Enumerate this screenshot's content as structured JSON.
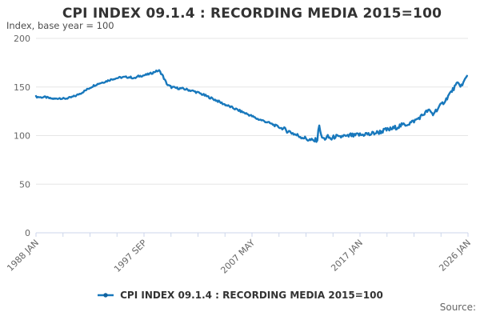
{
  "page": {
    "source_label": "Source:"
  },
  "chart_data": {
    "type": "line",
    "title": "CPI INDEX 09.1.4 : RECORDING MEDIA 2015=100",
    "subtitle": "Index, base year = 100",
    "xlabel": "",
    "ylabel": "Index, base year = 100",
    "x_axis": {
      "start_label": "1988 JAN",
      "end_label": "2026 JAN",
      "months_total": 456,
      "tick_interval_count": 16,
      "tick_labels": [
        {
          "tick_index": 0,
          "text": "1988 JAN"
        },
        {
          "tick_index": 4,
          "text": "1997 SEP"
        },
        {
          "tick_index": 8,
          "text": "2007 MAY"
        },
        {
          "tick_index": 12,
          "text": "2017 JAN"
        },
        {
          "tick_index": 16,
          "text": "2026 JAN"
        }
      ]
    },
    "y_axis": {
      "min": 0,
      "max": 200,
      "ticks": [
        0,
        50,
        100,
        150,
        200
      ]
    },
    "grid": "horizontal-only",
    "legend_position": "bottom-center",
    "series": [
      {
        "name": "CPI INDEX 09.1.4 : RECORDING MEDIA 2015=100",
        "color": "#1878bc",
        "anchor_points": [
          [
            0,
            140
          ],
          [
            5,
            139.4
          ],
          [
            10,
            139.6
          ],
          [
            15,
            138.2
          ],
          [
            20,
            137.8
          ],
          [
            25,
            138.6
          ],
          [
            30,
            137.9
          ],
          [
            36,
            139
          ],
          [
            42,
            141
          ],
          [
            48,
            144
          ],
          [
            54,
            147.5
          ],
          [
            60,
            151
          ],
          [
            66,
            153.5
          ],
          [
            73,
            155.5
          ],
          [
            80,
            158
          ],
          [
            87,
            159.5
          ],
          [
            94,
            160.2
          ],
          [
            100,
            160
          ],
          [
            104,
            158.8
          ],
          [
            108,
            161
          ],
          [
            113,
            161.8
          ],
          [
            118,
            163
          ],
          [
            123,
            164.5
          ],
          [
            126,
            166
          ],
          [
            130,
            166.8
          ],
          [
            133,
            163
          ],
          [
            136,
            157
          ],
          [
            139,
            152
          ],
          [
            143,
            149.8
          ],
          [
            149,
            148.8
          ],
          [
            155,
            148.2
          ],
          [
            161,
            147
          ],
          [
            167,
            145.5
          ],
          [
            173,
            143.5
          ],
          [
            179,
            141
          ],
          [
            185,
            138.5
          ],
          [
            191,
            136
          ],
          [
            197,
            133
          ],
          [
            203,
            130.5
          ],
          [
            209,
            128
          ],
          [
            215,
            125.5
          ],
          [
            221,
            123
          ],
          [
            227,
            120.5
          ],
          [
            233,
            117.5
          ],
          [
            239,
            115.5
          ],
          [
            245,
            113.5
          ],
          [
            251,
            111
          ],
          [
            257,
            108.5
          ],
          [
            263,
            106
          ],
          [
            269,
            103.5
          ],
          [
            275,
            100.5
          ],
          [
            281,
            98.5
          ],
          [
            287,
            96
          ],
          [
            293,
            94.5
          ],
          [
            297,
            96
          ],
          [
            299,
            112
          ],
          [
            301,
            99
          ],
          [
            304,
            96.5
          ],
          [
            308,
            98.5
          ],
          [
            312,
            96.5
          ],
          [
            316,
            99.5
          ],
          [
            320,
            97.5
          ],
          [
            324,
            100
          ],
          [
            328,
            98.5
          ],
          [
            332,
            100.5
          ],
          [
            336,
            99.5
          ],
          [
            340,
            101
          ],
          [
            344,
            100.5
          ],
          [
            348,
            102
          ],
          [
            352,
            101
          ],
          [
            356,
            102.5
          ],
          [
            360,
            103
          ],
          [
            364,
            104
          ],
          [
            368,
            105.5
          ],
          [
            372,
            106
          ],
          [
            376,
            107
          ],
          [
            380,
            108.5
          ],
          [
            384,
            110
          ],
          [
            388,
            111
          ],
          [
            392,
            112
          ],
          [
            396,
            113.5
          ],
          [
            400,
            115.5
          ],
          [
            404,
            118
          ],
          [
            408,
            121
          ],
          [
            411,
            123.5
          ],
          [
            414,
            126
          ],
          [
            417,
            124
          ],
          [
            419,
            121.5
          ],
          [
            421,
            125
          ],
          [
            424,
            127.5
          ],
          [
            427,
            131
          ],
          [
            430,
            134
          ],
          [
            433,
            137.5
          ],
          [
            436,
            142
          ],
          [
            439,
            146
          ],
          [
            442,
            150
          ],
          [
            445,
            153.5
          ],
          [
            448,
            152
          ],
          [
            450,
            151.5
          ],
          [
            452,
            156
          ],
          [
            453,
            158
          ],
          [
            454,
            160
          ],
          [
            455,
            162.5
          ]
        ],
        "noise_segments": [
          {
            "to": 130,
            "amp": 0.9
          },
          {
            "to": 260,
            "amp": 1.1
          },
          {
            "to": 300,
            "amp": 2.3
          },
          {
            "to": 396,
            "amp": 2.4
          },
          {
            "to": 455,
            "amp": 2.0
          }
        ]
      }
    ],
    "colors": {
      "axis_line": "#ccd6eb",
      "grid_line": "#e6e6e6",
      "tick_label": "#666666",
      "title": "#333333",
      "subtitle": "#4d4d4d",
      "legend_text": "#333333",
      "source_text": "#666666"
    }
  }
}
